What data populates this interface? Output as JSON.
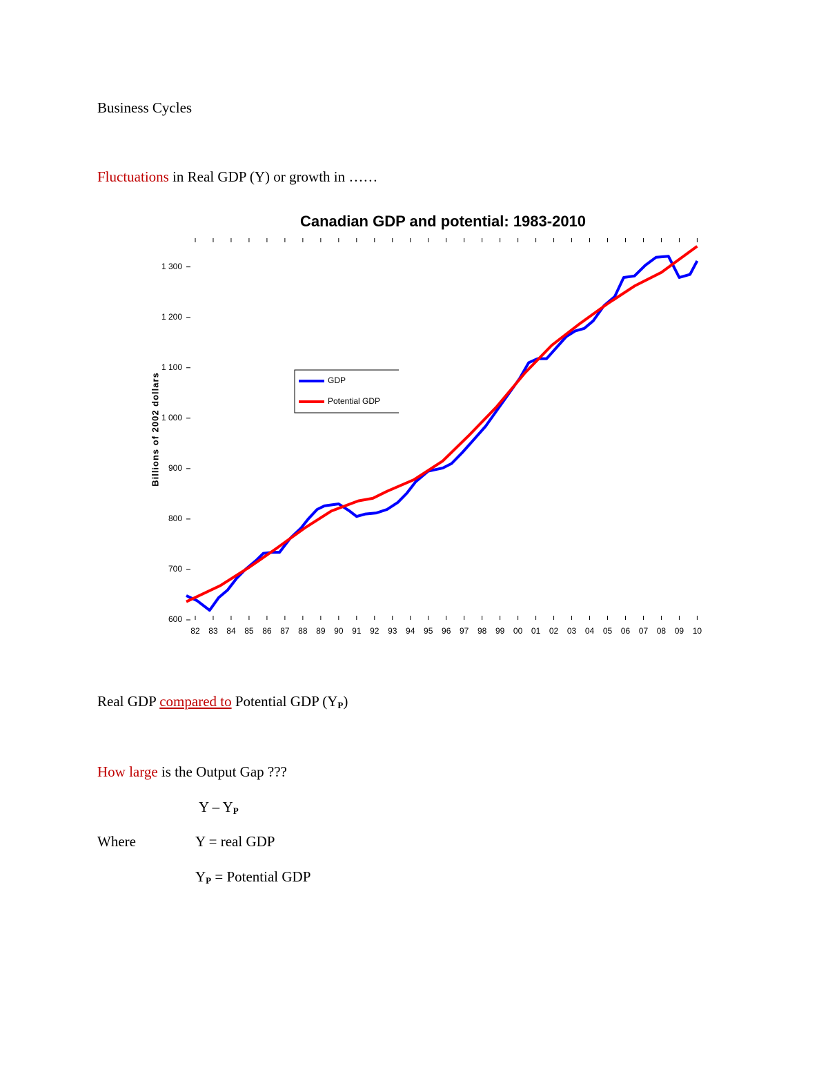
{
  "document": {
    "heading": "Business Cycles",
    "line1": {
      "highlight": "Fluctuations",
      "rest": " in Real GDP (Y) or growth in ……"
    },
    "line2": {
      "start": "Real GDP ",
      "highlight": "compared to",
      "rest": " Potential GDP (Y",
      "sub": "P",
      "end": ")"
    },
    "line3": {
      "highlight": "How large",
      "rest": " is the Output Gap ???"
    },
    "formula": {
      "main": "Y – Y",
      "sub": "P"
    },
    "where": {
      "label": "Where",
      "def1": "Y = real GDP",
      "def2_main": "Y",
      "def2_sub": "P",
      "def2_rest": " = Potential GDP"
    }
  },
  "chart_data": {
    "type": "line",
    "title": "Canadian GDP and potential: 1983-2010",
    "y_label": "Billions of 2002 dollars",
    "xlim": [
      1981.5,
      2010.1
    ],
    "xticks": [
      {
        "value": 1982,
        "label": "82"
      },
      {
        "value": 1983,
        "label": "83"
      },
      {
        "value": 1984,
        "label": "84"
      },
      {
        "value": 1985,
        "label": "85"
      },
      {
        "value": 1986,
        "label": "86"
      },
      {
        "value": 1987,
        "label": "87"
      },
      {
        "value": 1988,
        "label": "88"
      },
      {
        "value": 1989,
        "label": "89"
      },
      {
        "value": 1990,
        "label": "90"
      },
      {
        "value": 1991,
        "label": "91"
      },
      {
        "value": 1992,
        "label": "92"
      },
      {
        "value": 1993,
        "label": "93"
      },
      {
        "value": 1994,
        "label": "94"
      },
      {
        "value": 1995,
        "label": "95"
      },
      {
        "value": 1996,
        "label": "96"
      },
      {
        "value": 1997,
        "label": "97"
      },
      {
        "value": 1998,
        "label": "98"
      },
      {
        "value": 1999,
        "label": "99"
      },
      {
        "value": 2000,
        "label": "00"
      },
      {
        "value": 2001,
        "label": "01"
      },
      {
        "value": 2002,
        "label": "02"
      },
      {
        "value": 2003,
        "label": "03"
      },
      {
        "value": 2004,
        "label": "04"
      },
      {
        "value": 2005,
        "label": "05"
      },
      {
        "value": 2006,
        "label": "06"
      },
      {
        "value": 2007,
        "label": "07"
      },
      {
        "value": 2008,
        "label": "08"
      },
      {
        "value": 2009,
        "label": "09"
      },
      {
        "value": 2010,
        "label": "10"
      }
    ],
    "ylim": [
      600,
      1357
    ],
    "yticks": [
      600,
      700,
      800,
      900,
      {
        "value": 1000,
        "label": "1 000"
      },
      {
        "value": 1100,
        "label": "1 100"
      },
      {
        "value": 1200,
        "label": "1 200"
      },
      {
        "value": 1300,
        "label": "1 300"
      }
    ],
    "legend": "upper-left",
    "series": [
      {
        "name": "GDP",
        "color": "#0000ff",
        "x": [
          1981.5,
          1982.1,
          1982.8,
          1983.3,
          1983.8,
          1984.3,
          1984.8,
          1985.4,
          1985.8,
          1986.3,
          1986.7,
          1987.3,
          1987.9,
          1988.3,
          1988.8,
          1989.2,
          1990.0,
          1990.6,
          1991.0,
          1991.5,
          1992.1,
          1992.7,
          1993.3,
          1993.8,
          1994.3,
          1995.0,
          1995.8,
          1996.3,
          1996.9,
          1997.7,
          1998.2,
          1998.9,
          1999.5,
          2000.1,
          2000.6,
          2001.1,
          2001.6,
          2002.1,
          2002.7,
          2003.2,
          2003.7,
          2004.2,
          2004.8,
          2005.4,
          2005.9,
          2006.5,
          2007.1,
          2007.7,
          2008.4,
          2009.0,
          2009.6,
          2010.0
        ],
        "values": [
          648,
          638,
          619,
          644,
          659,
          682,
          700,
          718,
          732,
          734,
          734,
          762,
          782,
          800,
          819,
          826,
          830,
          816,
          805,
          810,
          812,
          819,
          833,
          851,
          874,
          895,
          901,
          910,
          932,
          964,
          984,
          1019,
          1049,
          1079,
          1110,
          1118,
          1118,
          1138,
          1162,
          1173,
          1178,
          1193,
          1223,
          1241,
          1279,
          1282,
          1303,
          1319,
          1321,
          1279,
          1285,
          1312
        ]
      },
      {
        "name": "Potential GDP",
        "color": "#ff0000",
        "x": [
          1981.5,
          1983.4,
          1985.0,
          1986.5,
          1988.1,
          1989.6,
          1991.1,
          1991.9,
          1992.7,
          1994.2,
          1995.8,
          1997.3,
          1998.8,
          2000.4,
          2001.9,
          2003.4,
          2005.0,
          2006.5,
          2008.0,
          2010.0
        ],
        "values": [
          636,
          668,
          704,
          741,
          782,
          816,
          836,
          841,
          855,
          878,
          915,
          967,
          1022,
          1090,
          1145,
          1186,
          1227,
          1262,
          1289,
          1341
        ]
      }
    ]
  }
}
